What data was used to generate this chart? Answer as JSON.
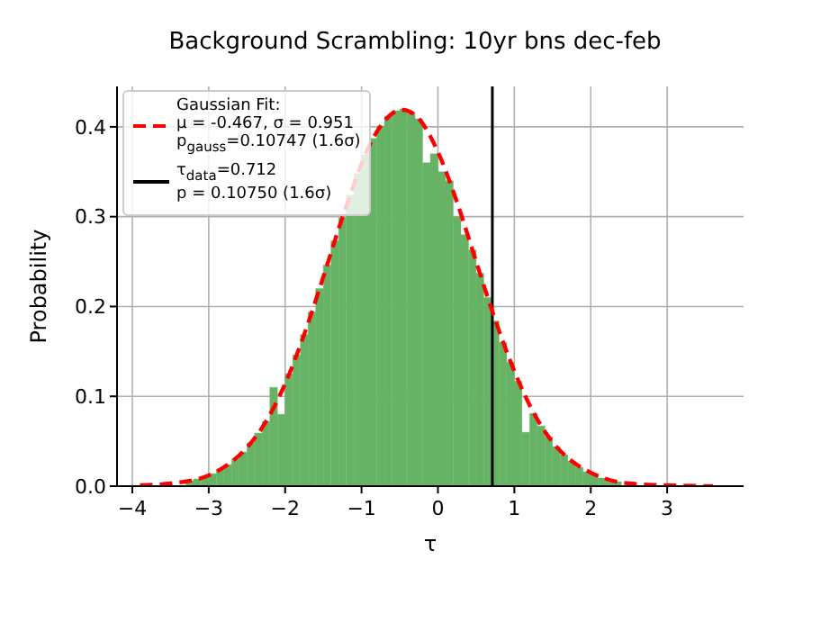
{
  "chart_data": {
    "type": "histogram",
    "title": "Background Scrambling: 10yr bns dec-feb",
    "xlabel": "τ",
    "ylabel": "Probability",
    "bins": [
      -3.3,
      -3.2,
      -3.1,
      -3.0,
      -2.9,
      -2.8,
      -2.7,
      -2.6,
      -2.5,
      -2.4,
      -2.3,
      -2.2,
      -2.1,
      -2.0,
      -1.9,
      -1.8,
      -1.7,
      -1.6,
      -1.5,
      -1.4,
      -1.3,
      -1.2,
      -1.1,
      -1.0,
      -0.9,
      -0.8,
      -0.7,
      -0.6,
      -0.5,
      -0.4,
      -0.3,
      -0.2,
      -0.1,
      0.0,
      0.1,
      0.2,
      0.3,
      0.4,
      0.5,
      0.6,
      0.7,
      0.8,
      0.9,
      1.0,
      1.1,
      1.2,
      1.3,
      1.4,
      1.5,
      1.6,
      1.7,
      1.8,
      1.9,
      2.0,
      2.1,
      2.2,
      2.3,
      2.4
    ],
    "values": [
      0.006,
      0.008,
      0.01,
      0.014,
      0.018,
      0.024,
      0.03,
      0.038,
      0.048,
      0.059,
      0.072,
      0.11,
      0.08,
      0.125,
      0.146,
      0.169,
      0.194,
      0.22,
      0.246,
      0.273,
      0.299,
      0.324,
      0.348,
      0.369,
      0.387,
      0.401,
      0.412,
      0.418,
      0.42,
      0.416,
      0.409,
      0.36,
      0.37,
      0.35,
      0.34,
      0.3,
      0.28,
      0.263,
      0.237,
      0.21,
      0.184,
      0.16,
      0.138,
      0.117,
      0.06,
      0.081,
      0.067,
      0.055,
      0.044,
      0.035,
      0.028,
      0.021,
      0.016,
      0.013,
      0.009,
      0.007,
      0.005
    ],
    "color": "#66b366",
    "series": [
      {
        "type": "line",
        "name": "Gaussian Fit:\nμ = -0.467, σ = 0.951\np$_{gauss}$=0.10747 (1.6σ)",
        "color": "#ff0000",
        "line_style": "dashed",
        "x": [
          -3.9,
          -3.5,
          -3.0,
          -2.75,
          -2.5,
          -2.25,
          -2.0,
          -1.75,
          -1.5,
          -1.25,
          -0.85,
          -0.75,
          -0.467,
          -0.25,
          0.0,
          0.25,
          0.5,
          0.75,
          1.0,
          1.25,
          1.5,
          1.75,
          2.0,
          2.5,
          3.0,
          3.6
        ],
        "values": [
          0.001,
          0.003,
          0.012,
          0.024,
          0.043,
          0.072,
          0.114,
          0.169,
          0.233,
          0.299,
          0.387,
          0.401,
          0.419,
          0.409,
          0.372,
          0.316,
          0.25,
          0.185,
          0.128,
          0.082,
          0.049,
          0.028,
          0.015,
          0.003,
          0.001,
          0
        ]
      }
    ],
    "ref_lines": [
      {
        "axis": "x",
        "value": 0.712,
        "label": "τ$_{data}$=0.712\np = 0.10750 (1.6σ)",
        "color": "#000000"
      }
    ],
    "xlim": [
      -4.2,
      4.0
    ],
    "xticks": [
      {
        "value": -4,
        "label": "−4"
      },
      {
        "value": -3,
        "label": "−3"
      },
      {
        "value": -2,
        "label": "−2"
      },
      {
        "value": -1,
        "label": "−1"
      },
      0,
      1,
      2,
      3
    ],
    "ylim": [
      0,
      0.445
    ],
    "yticks": [
      {
        "value": 0,
        "label": "0.0"
      },
      0.1,
      0.2,
      0.3,
      0.4
    ],
    "grid": true,
    "legend": "top left"
  }
}
